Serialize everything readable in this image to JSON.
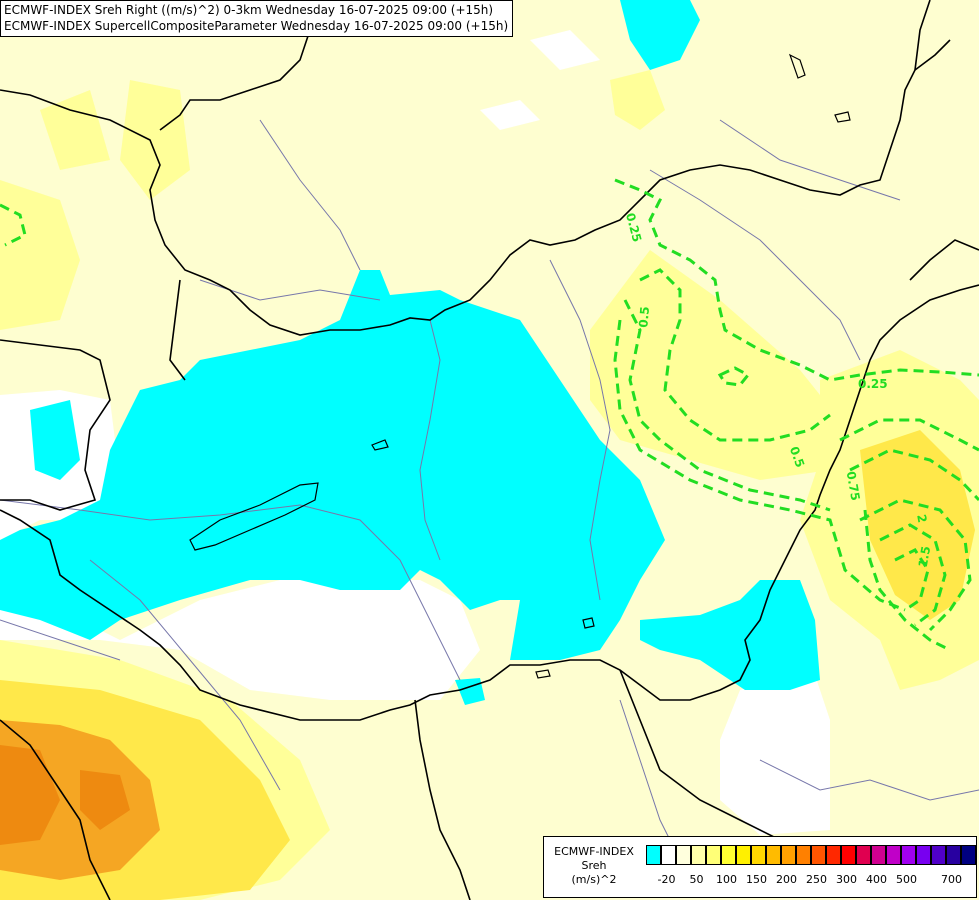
{
  "title": {
    "line1": "ECMWF-INDEX Sreh Right ((m/s)^2) 0-3km Wednesday 16-07-2025 09:00 (+15h)",
    "line2": "ECMWF-INDEX SupercellCompositeParameter Wednesday 16-07-2025 09:00 (+15h)"
  },
  "contour_labels": [
    "0.25",
    "0.5",
    "0.25",
    "0.5",
    "0.75",
    "2",
    "1.5"
  ],
  "legend": {
    "line1": "ECMWF-INDEX",
    "line2": "Sreh",
    "line3": "(m/s)^2",
    "colors": [
      "#00ffff",
      "#ffffff",
      "#ffffdd",
      "#ffffaa",
      "#ffff77",
      "#ffff33",
      "#fff000",
      "#ffd700",
      "#ffbb00",
      "#ffa000",
      "#ff8000",
      "#ff5500",
      "#ff2800",
      "#ff0000",
      "#e00050",
      "#d00090",
      "#c000c8",
      "#a000f0",
      "#7800f0",
      "#5000c8",
      "#2800a0",
      "#000080"
    ],
    "ticks": [
      "-20",
      "50",
      "100",
      "150",
      "200",
      "250",
      "300",
      "400",
      "500",
      "700"
    ]
  },
  "colors": {
    "background": "#fefed0",
    "negative": "#00ffff",
    "zero": "#ffffff",
    "light_yellow": "#ffff99",
    "yellow": "#ffe84a",
    "orange": "#f5a623",
    "dark_orange": "#ee8a10",
    "contour": "#22dd22",
    "borders": "#000000",
    "rivers": "#7777aa"
  }
}
